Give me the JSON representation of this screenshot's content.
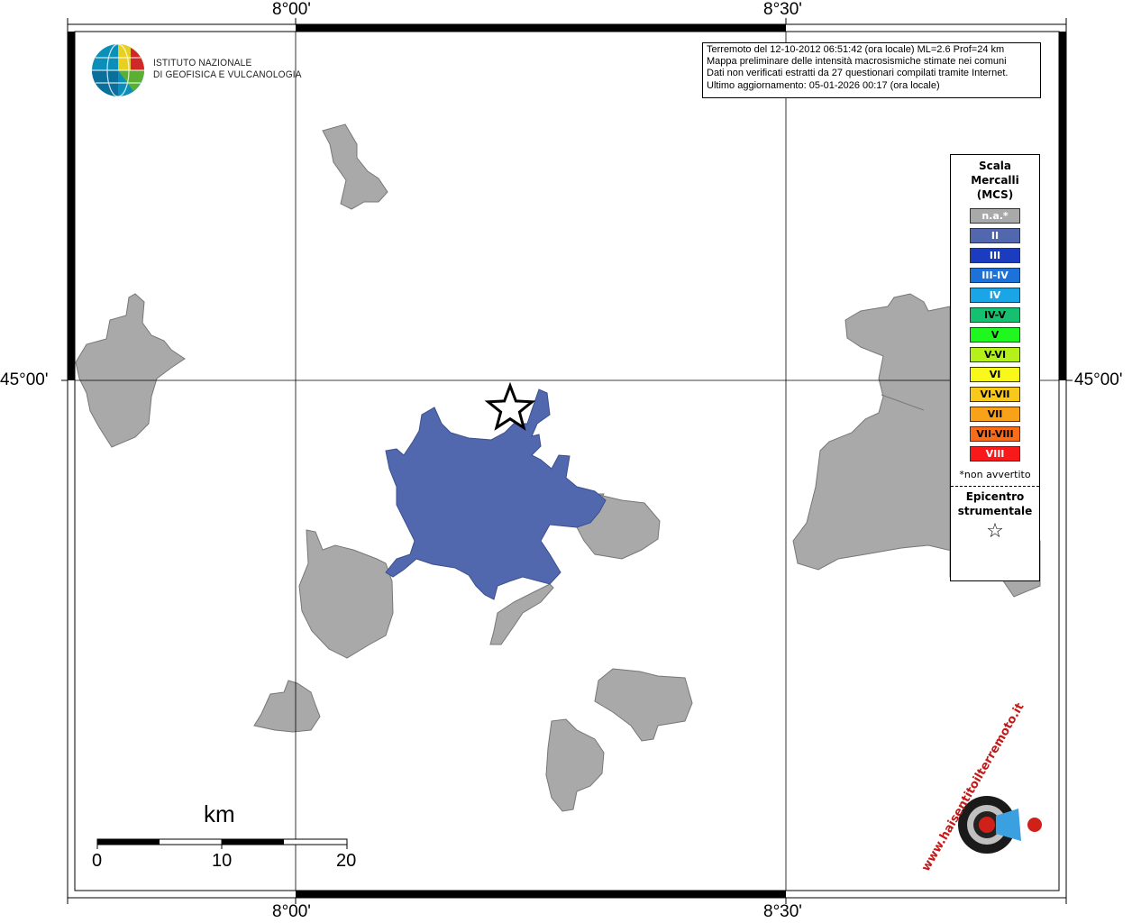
{
  "map": {
    "top_labels": [
      "8°00'",
      "8°30'"
    ],
    "bottom_labels": [
      "8°00'",
      "8°30'"
    ],
    "left_label": "45°00'",
    "right_label": "45°00'",
    "colors": {
      "not_felt": "#a9a9a9",
      "intensity_II": "#5268ae",
      "border": "#666666",
      "graticule": "#000000"
    }
  },
  "info": {
    "lines": [
      "Terremoto del 12-10-2012 06:51:42 (ora locale) ML=2.6 Prof=24 km",
      "Mappa preliminare delle intensità macrosismiche stimate nei comuni",
      "Dati non verificati estratti da 27 questionari compilati tramite Internet.",
      "Ultimo aggiornamento: 05-01-2026 00:17 (ora locale)"
    ]
  },
  "logo": {
    "line1": "ISTITUTO NAZIONALE",
    "line2": "DI GEOFISICA E VULCANOLOGIA"
  },
  "legend": {
    "title_lines": [
      "Scala",
      "Mercalli",
      "(MCS)"
    ],
    "items": [
      {
        "label": "n.a.*",
        "color": "#a9a9a9"
      },
      {
        "label": "II",
        "color": "#5268ae"
      },
      {
        "label": "III",
        "color": "#1c3cc0"
      },
      {
        "label": "III-IV",
        "color": "#1c72d8"
      },
      {
        "label": "IV",
        "color": "#1aa6e6"
      },
      {
        "label": "IV-V",
        "color": "#15c070"
      },
      {
        "label": "V",
        "color": "#1ef81e"
      },
      {
        "label": "V-VI",
        "color": "#b4f01a"
      },
      {
        "label": "VI",
        "color": "#f8f81a"
      },
      {
        "label": "VI-VII",
        "color": "#f8c81a"
      },
      {
        "label": "VII",
        "color": "#f8a21a"
      },
      {
        "label": "VII-VIII",
        "color": "#f86c1a"
      },
      {
        "label": "VIII",
        "color": "#f81a1a"
      }
    ],
    "note": "*non avvertito",
    "epicenter_lines": [
      "Epicentro",
      "strumentale"
    ],
    "star": "☆"
  },
  "scale": {
    "unit": "km",
    "ticks": [
      "0",
      "10",
      "20"
    ]
  },
  "watermark": {
    "text": "www.haisentitoilterremoto.it"
  }
}
